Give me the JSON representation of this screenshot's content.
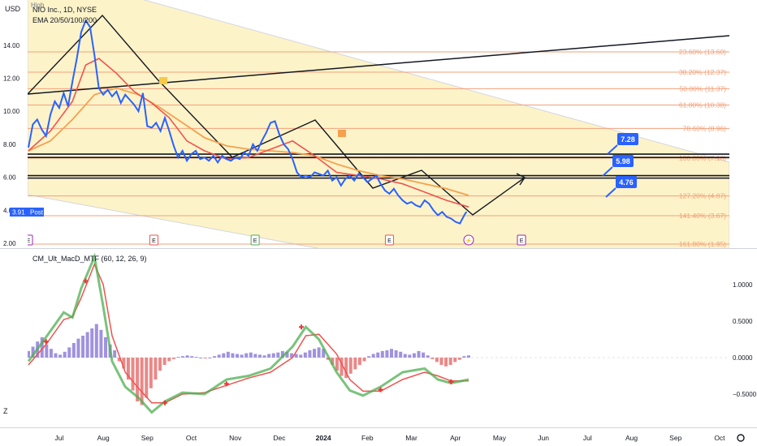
{
  "left_axis_label": "USD",
  "top_label": "High",
  "legend": {
    "symbol": "NIO Inc., 1D, NYSE",
    "ema": "EMA 20/50/100/200"
  },
  "indicator_label": "CM_Ult_MacD_MTF (60, 12, 26, 9)",
  "corner_mark": "Z",
  "price_tag": {
    "value": "3.91",
    "label": "Post"
  },
  "callouts": [
    "7.28",
    "5.98",
    "4.76"
  ],
  "colors": {
    "price": "#2962ff",
    "ema20": "#ef5350",
    "ema50": "#f5a04e",
    "fib_text": "#f2a07a",
    "channel_fill": "#fdf3c7",
    "macd_up": "#4caf50",
    "macd_down": "#ef5350",
    "hist_pos": "#8f7fd8",
    "hist_neg": "#e57373",
    "callout": "#2962ff"
  },
  "chart_data": [
    {
      "type": "line",
      "name_printed": "NIO Inc., 1D, NYSE",
      "y_ticks": [
        "14.00",
        "12.00",
        "10.00",
        "8.00",
        "6.00",
        "4.00",
        "2.00"
      ],
      "y_range": [
        2,
        15.6
      ],
      "x_ticks": [
        "Jul",
        "Aug",
        "Sep",
        "Oct",
        "Nov",
        "Dec",
        "2024",
        "Feb",
        "Mar",
        "Apr",
        "May",
        "Jun",
        "Jul",
        "Aug",
        "Sep",
        "Oct"
      ],
      "x_range_months": [
        -0.3,
        15.2
      ],
      "fib_levels": [
        {
          "label": "23.60% (13.60)",
          "value": 13.6
        },
        {
          "label": "38.20% (12.37)",
          "value": 12.37
        },
        {
          "label": "50.00% (11.37)",
          "value": 11.37
        },
        {
          "label": "61.80% (10.38)",
          "value": 10.38
        },
        {
          "label": "78.60% (8.96)",
          "value": 8.96
        },
        {
          "label": "100.00% (7.16)",
          "value": 7.16
        },
        {
          "label": "127.20% (4.87)",
          "value": 4.87
        },
        {
          "label": "141.40% (3.67)",
          "value": 3.67
        },
        {
          "label": "161.80% (1.95)",
          "value": 1.95
        }
      ],
      "support_lines": [
        7.4,
        7.2,
        6.1,
        5.95
      ],
      "earnings_markers": [
        {
          "x": 0.0,
          "label": "E"
        },
        {
          "x": 2.85,
          "label": "E"
        },
        {
          "x": 5.15,
          "label": "E"
        },
        {
          "x": 8.2,
          "label": "E"
        },
        {
          "x": 10.0,
          "label": "⚡"
        },
        {
          "x": 11.2,
          "label": "E"
        }
      ],
      "price_series": {
        "x": [
          0.0,
          0.1,
          0.2,
          0.3,
          0.4,
          0.5,
          0.6,
          0.7,
          0.8,
          0.9,
          1.0,
          1.1,
          1.2,
          1.3,
          1.4,
          1.5,
          1.55,
          1.6,
          1.7,
          1.8,
          1.9,
          2.0,
          2.1,
          2.2,
          2.3,
          2.4,
          2.5,
          2.6,
          2.7,
          2.8,
          2.9,
          3.0,
          3.1,
          3.2,
          3.3,
          3.4,
          3.5,
          3.6,
          3.7,
          3.8,
          3.9,
          4.0,
          4.1,
          4.2,
          4.3,
          4.4,
          4.5,
          4.6,
          4.7,
          4.8,
          4.9,
          5.0,
          5.1,
          5.2,
          5.3,
          5.4,
          5.5,
          5.6,
          5.7,
          5.8,
          5.9,
          6.0,
          6.1,
          6.2,
          6.3,
          6.4,
          6.5,
          6.6,
          6.7,
          6.8,
          6.9,
          7.0,
          7.1,
          7.2,
          7.3,
          7.4,
          7.5,
          7.6,
          7.7,
          7.8,
          7.9,
          8.0,
          8.1,
          8.2,
          8.3,
          8.4,
          8.5,
          8.6,
          8.7,
          8.8,
          8.9,
          9.0,
          9.1,
          9.2,
          9.3,
          9.4,
          9.5,
          9.6,
          9.7,
          9.8,
          9.9,
          9.95
        ],
        "y": [
          7.8,
          9.2,
          9.5,
          8.9,
          8.5,
          9.8,
          10.6,
          10.2,
          11.1,
          10.3,
          11.8,
          13.2,
          14.8,
          15.5,
          15.1,
          13.4,
          12.4,
          11.4,
          11.0,
          11.3,
          10.9,
          11.2,
          10.5,
          11.0,
          10.7,
          10.4,
          10.0,
          11.1,
          9.1,
          9.0,
          9.3,
          8.8,
          9.6,
          8.8,
          7.9,
          7.2,
          7.6,
          7.0,
          7.4,
          7.6,
          7.1,
          7.2,
          7.0,
          7.3,
          6.9,
          7.3,
          7.1,
          7.0,
          7.2,
          7.1,
          7.5,
          7.3,
          8.0,
          7.6,
          8.2,
          8.7,
          9.3,
          9.4,
          8.6,
          8.0,
          7.7,
          7.1,
          6.3,
          6.0,
          6.1,
          6.0,
          6.3,
          6.2,
          6.1,
          6.4,
          5.8,
          6.0,
          5.5,
          5.9,
          6.1,
          5.8,
          6.2,
          6.0,
          5.7,
          5.9,
          6.1,
          5.6,
          5.2,
          5.0,
          5.3,
          4.9,
          4.6,
          4.4,
          4.5,
          4.3,
          4.2,
          4.6,
          4.4,
          4.0,
          3.7,
          3.9,
          3.6,
          3.5,
          3.3,
          3.2,
          3.7,
          3.91
        ]
      },
      "ema20": {
        "x": [
          0.0,
          0.5,
          1.0,
          1.3,
          1.6,
          2.0,
          2.4,
          2.8,
          3.2,
          3.6,
          4.0,
          4.5,
          5.0,
          5.5,
          6.0,
          6.5,
          7.0,
          7.5,
          8.0,
          8.5,
          9.0,
          9.5,
          10.0
        ],
        "y": [
          7.6,
          8.8,
          10.6,
          12.8,
          13.2,
          12.3,
          11.2,
          10.5,
          9.6,
          8.2,
          7.6,
          7.1,
          7.2,
          7.7,
          8.2,
          7.3,
          6.3,
          6.1,
          5.9,
          5.6,
          5.1,
          4.6,
          4.2
        ]
      },
      "ema50": {
        "x": [
          0.0,
          0.5,
          1.0,
          1.5,
          2.0,
          2.5,
          3.0,
          3.5,
          4.0,
          4.5,
          5.0,
          5.5,
          6.0,
          6.5,
          7.0,
          7.5,
          8.0,
          8.5,
          9.0,
          9.5,
          10.0
        ],
        "y": [
          7.6,
          8.2,
          9.5,
          11.0,
          11.4,
          11.0,
          10.2,
          9.3,
          8.4,
          7.9,
          7.7,
          7.6,
          7.5,
          7.3,
          6.8,
          6.4,
          6.1,
          5.9,
          5.6,
          5.3,
          4.9
        ]
      },
      "callout_values": [
        7.28,
        5.98,
        4.76
      ]
    },
    {
      "type": "bar",
      "name_printed": "CM_Ult_MacD_MTF (60, 12, 26, 9)",
      "y_ticks": [
        "1.0000",
        "0.5000",
        "0.0000",
        "−0.5000"
      ],
      "y_range": [
        -0.95,
        1.45
      ],
      "histogram": [
        0.09,
        0.15,
        0.22,
        0.28,
        0.18,
        0.12,
        0.06,
        0.04,
        0.08,
        0.14,
        0.2,
        0.26,
        0.3,
        0.35,
        0.4,
        0.46,
        0.38,
        0.28,
        0.18,
        0.1,
        -0.05,
        -0.15,
        -0.3,
        -0.45,
        -0.6,
        -0.65,
        -0.55,
        -0.42,
        -0.3,
        -0.18,
        -0.1,
        -0.05,
        -0.02,
        0.01,
        0.02,
        0.03,
        0.02,
        0.01,
        0.0,
        -0.01,
        0.0,
        0.02,
        0.04,
        0.06,
        0.08,
        0.06,
        0.05,
        0.04,
        0.06,
        0.07,
        0.05,
        0.04,
        0.03,
        0.05,
        0.06,
        0.07,
        0.09,
        0.08,
        0.06,
        0.05,
        0.04,
        0.07,
        0.1,
        0.12,
        0.14,
        0.12,
        -0.03,
        -0.1,
        -0.18,
        -0.25,
        -0.28,
        -0.22,
        -0.16,
        -0.1,
        -0.05,
        0.02,
        0.05,
        0.07,
        0.09,
        0.1,
        0.12,
        0.1,
        0.08,
        0.05,
        0.04,
        0.06,
        0.09,
        0.07,
        0.03,
        -0.02,
        -0.06,
        -0.1,
        -0.12,
        -0.1,
        -0.06,
        -0.03,
        0.02,
        0.03
      ],
      "histogram_x_range": [
        0.0,
        10.0
      ],
      "macd_line": {
        "x": [
          0.0,
          0.4,
          0.8,
          1.0,
          1.2,
          1.5,
          1.7,
          1.9,
          2.2,
          2.5,
          2.8,
          3.1,
          3.5,
          4.0,
          4.5,
          5.0,
          5.5,
          6.0,
          6.3,
          6.6,
          7.0,
          7.3,
          7.6,
          8.0,
          8.5,
          9.0,
          9.3,
          9.6,
          10.0
        ],
        "y": [
          -0.05,
          0.28,
          0.62,
          0.55,
          0.95,
          1.38,
          0.7,
          -0.05,
          -0.4,
          -0.55,
          -0.75,
          -0.6,
          -0.48,
          -0.5,
          -0.3,
          -0.25,
          -0.15,
          0.15,
          0.42,
          0.25,
          -0.2,
          -0.45,
          -0.52,
          -0.4,
          -0.2,
          -0.15,
          -0.3,
          -0.35,
          -0.3
        ]
      },
      "signal_line": {
        "x": [
          0.0,
          0.4,
          0.8,
          1.0,
          1.2,
          1.5,
          1.7,
          1.9,
          2.2,
          2.5,
          2.8,
          3.1,
          3.5,
          4.0,
          4.5,
          5.0,
          5.5,
          6.0,
          6.3,
          6.6,
          7.0,
          7.3,
          7.6,
          8.0,
          8.5,
          9.0,
          9.3,
          9.6,
          10.0
        ],
        "y": [
          -0.1,
          0.18,
          0.52,
          0.56,
          0.82,
          1.28,
          1.0,
          0.3,
          -0.2,
          -0.42,
          -0.62,
          -0.62,
          -0.5,
          -0.48,
          -0.38,
          -0.28,
          -0.2,
          0.0,
          0.3,
          0.32,
          0.05,
          -0.3,
          -0.46,
          -0.46,
          -0.3,
          -0.2,
          -0.25,
          -0.32,
          -0.32
        ]
      }
    }
  ]
}
